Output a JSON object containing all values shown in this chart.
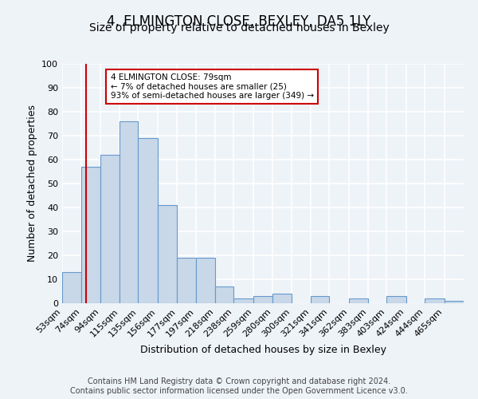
{
  "title": "4, ELMINGTON CLOSE, BEXLEY, DA5 1LY",
  "subtitle": "Size of property relative to detached houses in Bexley",
  "xlabel": "Distribution of detached houses by size in Bexley",
  "ylabel": "Number of detached properties",
  "bar_labels": [
    "53sqm",
    "74sqm",
    "94sqm",
    "115sqm",
    "135sqm",
    "156sqm",
    "177sqm",
    "197sqm",
    "218sqm",
    "238sqm",
    "259sqm",
    "280sqm",
    "300sqm",
    "321sqm",
    "341sqm",
    "362sqm",
    "383sqm",
    "403sqm",
    "424sqm",
    "444sqm",
    "465sqm"
  ],
  "bar_values": [
    13,
    57,
    62,
    76,
    69,
    41,
    19,
    19,
    7,
    2,
    3,
    4,
    0,
    3,
    0,
    2,
    0,
    3,
    0,
    2,
    1
  ],
  "bin_edges": [
    53,
    74,
    94,
    115,
    135,
    156,
    177,
    197,
    218,
    238,
    259,
    280,
    300,
    321,
    341,
    362,
    383,
    403,
    424,
    444,
    465,
    486
  ],
  "bar_color": "#c8d8e8",
  "bar_edge_color": "#6699cc",
  "ylim": [
    0,
    100
  ],
  "yticks": [
    0,
    10,
    20,
    30,
    40,
    50,
    60,
    70,
    80,
    90,
    100
  ],
  "vline_x": 79,
  "vline_color": "#cc0000",
  "annotation_box_text": "4 ELMINGTON CLOSE: 79sqm\n← 7% of detached houses are smaller (25)\n93% of semi-detached houses are larger (349) →",
  "footer_text": "Contains HM Land Registry data © Crown copyright and database right 2024.\nContains public sector information licensed under the Open Government Licence v3.0.",
  "background_color": "#eef3f8",
  "plot_background_color": "#eef3f8",
  "grid_color": "#ffffff",
  "title_fontsize": 12,
  "subtitle_fontsize": 10,
  "axis_label_fontsize": 9,
  "tick_fontsize": 8,
  "footer_fontsize": 7
}
